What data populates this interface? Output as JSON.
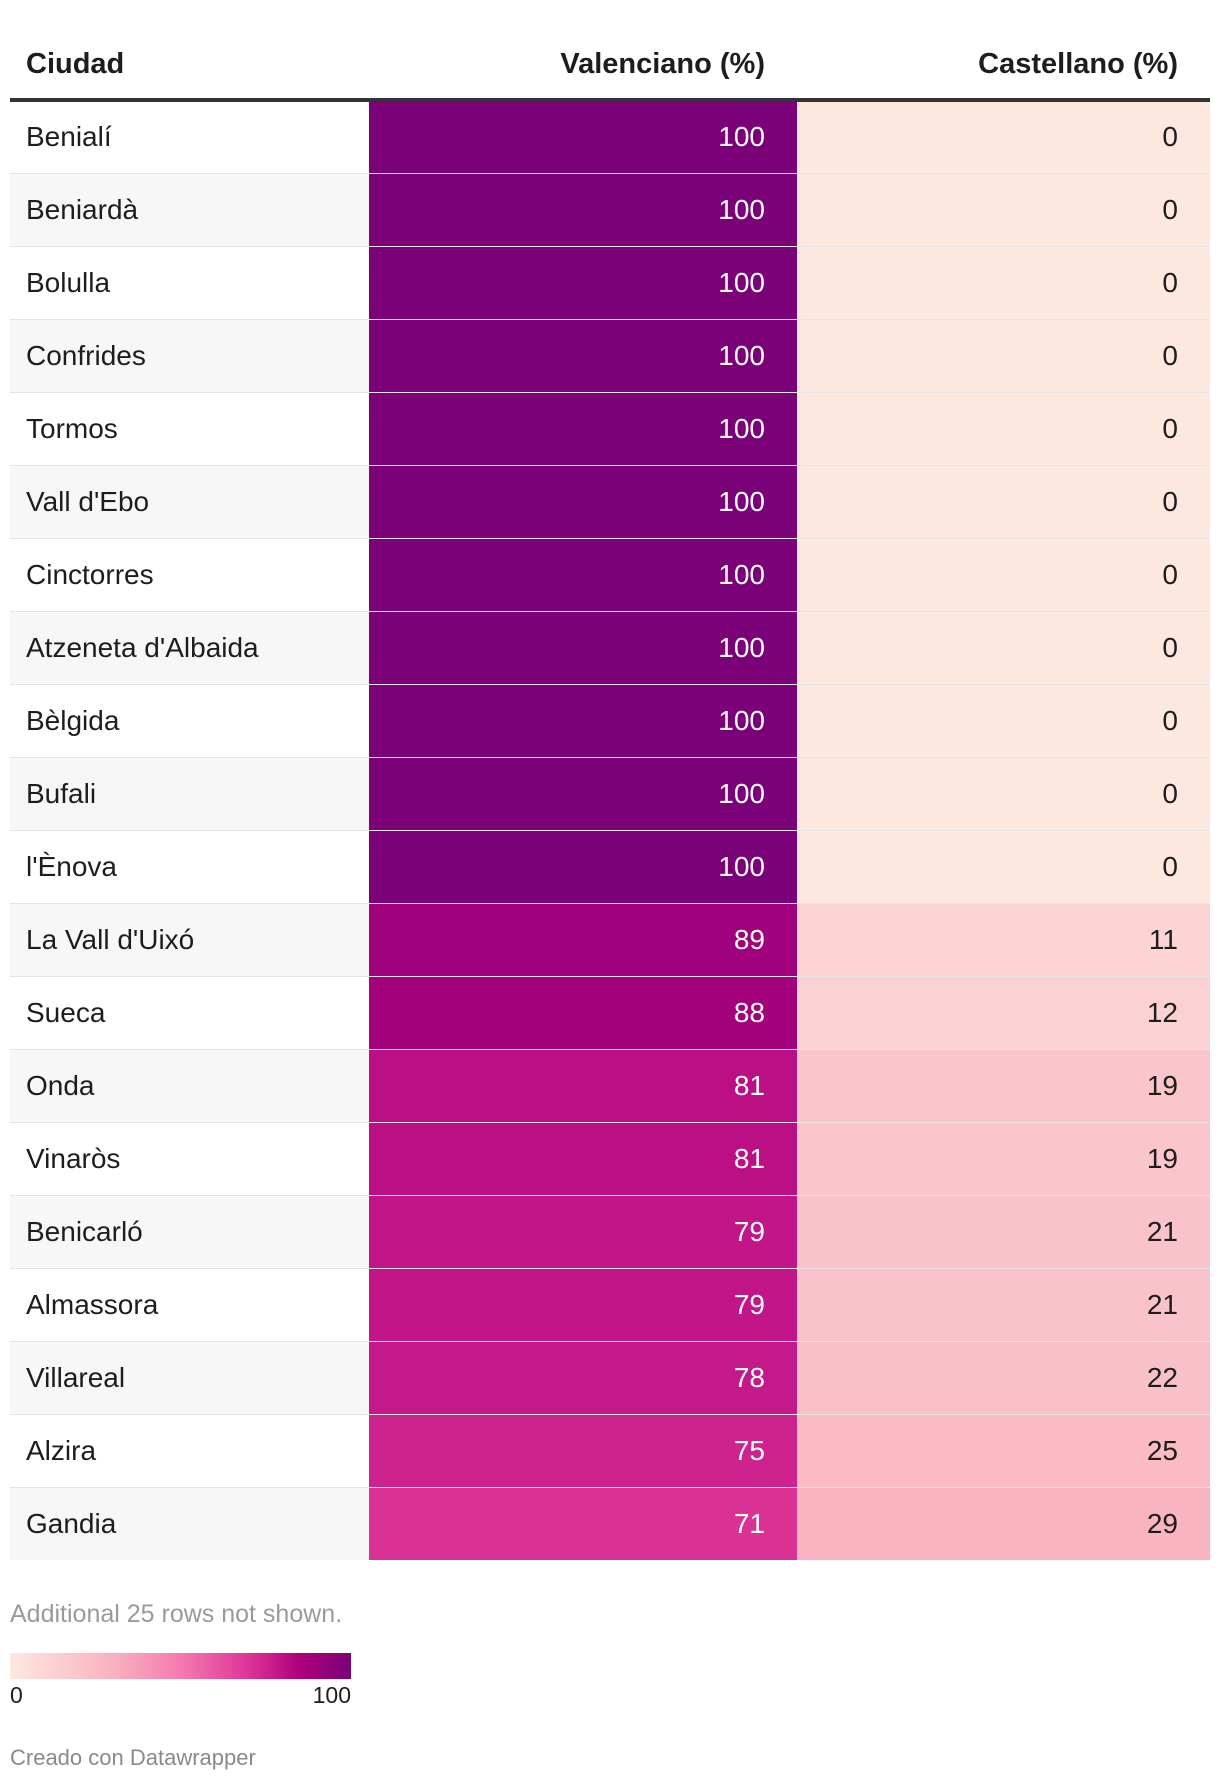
{
  "chart_data": {
    "type": "table",
    "columns": [
      "Ciudad",
      "Valenciano (%)",
      "Castellano (%)"
    ],
    "rows": [
      [
        "Benialí",
        100,
        0
      ],
      [
        "Beniardà",
        100,
        0
      ],
      [
        "Bolulla",
        100,
        0
      ],
      [
        "Confrides",
        100,
        0
      ],
      [
        "Tormos",
        100,
        0
      ],
      [
        "Vall d'Ebo",
        100,
        0
      ],
      [
        "Cinctorres",
        100,
        0
      ],
      [
        "Atzeneta d'Albaida",
        100,
        0
      ],
      [
        "Bèlgida",
        100,
        0
      ],
      [
        "Bufali",
        100,
        0
      ],
      [
        "l'Ènova",
        100,
        0
      ],
      [
        "La Vall d'Uixó",
        89,
        11
      ],
      [
        "Sueca",
        88,
        12
      ],
      [
        "Onda",
        81,
        19
      ],
      [
        "Vinaròs",
        81,
        19
      ],
      [
        "Benicarló",
        79,
        21
      ],
      [
        "Almassora",
        79,
        21
      ],
      [
        "Villareal",
        78,
        22
      ],
      [
        "Alzira",
        75,
        25
      ],
      [
        "Gandia",
        71,
        29
      ]
    ],
    "color_scale": {
      "min": 0,
      "max": 100,
      "min_label": "0",
      "max_label": "100",
      "stops": [
        "#fde8e0",
        "#f9b2c0",
        "#f57ab0",
        "#dd3497",
        "#ae017e",
        "#7a0177"
      ]
    }
  },
  "footer": {
    "note": "Additional 25 rows not shown.",
    "credit": "Creado con Datawrapper"
  }
}
